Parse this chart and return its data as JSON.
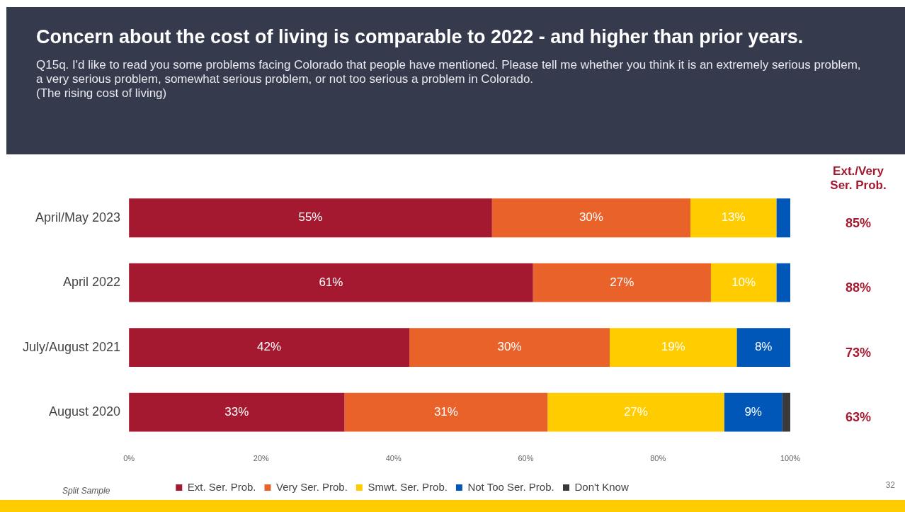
{
  "chart_data": {
    "type": "bar",
    "orientation": "horizontal",
    "stacked": true,
    "title": "Concern about the cost of living is comparable to 2022  - and higher than prior years.",
    "subtitle": "Q15q. I'd like to read you some problems facing Colorado that people have mentioned. Please tell me whether you think it is an extremely serious problem, a very serious problem, somewhat serious problem, or not too serious a problem in Colorado.\n(The rising cost of living)",
    "categories": [
      "April/May 2023",
      "April 2022",
      "July/August 2021",
      "August 2020"
    ],
    "series": [
      {
        "name": "Ext. Ser. Prob.",
        "color": "#a51930",
        "values": [
          54.9,
          61.1,
          42.4,
          32.6
        ],
        "value_labels": [
          "55%",
          "61%",
          "42%",
          "33%"
        ]
      },
      {
        "name": "Very Ser. Prob.",
        "color": "#e8622a",
        "values": [
          30,
          26.9,
          30.3,
          30.7
        ],
        "value_labels": [
          "30%",
          "27%",
          "30%",
          "31%"
        ]
      },
      {
        "name": "Smwt. Ser. Prob.",
        "color": "#ffcc00",
        "values": [
          13,
          9.9,
          19.2,
          26.7
        ],
        "value_labels": [
          "13%",
          "10%",
          "19%",
          "27%"
        ]
      },
      {
        "name": "Not Too Ser. Prob.",
        "color": "#0057b8",
        "values": [
          2.1,
          2.1,
          8.1,
          8.8
        ],
        "value_labels": [
          null,
          null,
          "8%",
          "9%"
        ]
      },
      {
        "name": "Don't Know",
        "color": "#3a3a3a",
        "values": [
          0,
          0,
          0,
          1.2
        ],
        "value_labels": [
          null,
          null,
          null,
          null
        ]
      }
    ],
    "xlim": [
      0,
      100
    ],
    "xticks": [
      {
        "value": 0,
        "label": "0%"
      },
      {
        "value": 20,
        "label": "20%"
      },
      {
        "value": 40,
        "label": "40%"
      },
      {
        "value": 60,
        "label": "60%"
      },
      {
        "value": 80,
        "label": "80%"
      },
      {
        "value": 100,
        "label": "100%"
      }
    ],
    "grid": false,
    "legend": "bottom",
    "annotations": [
      "Ext./Very\nSer. Prob.",
      "85%",
      "88%",
      "73%",
      "63%",
      "Split Sample",
      "32"
    ]
  }
}
